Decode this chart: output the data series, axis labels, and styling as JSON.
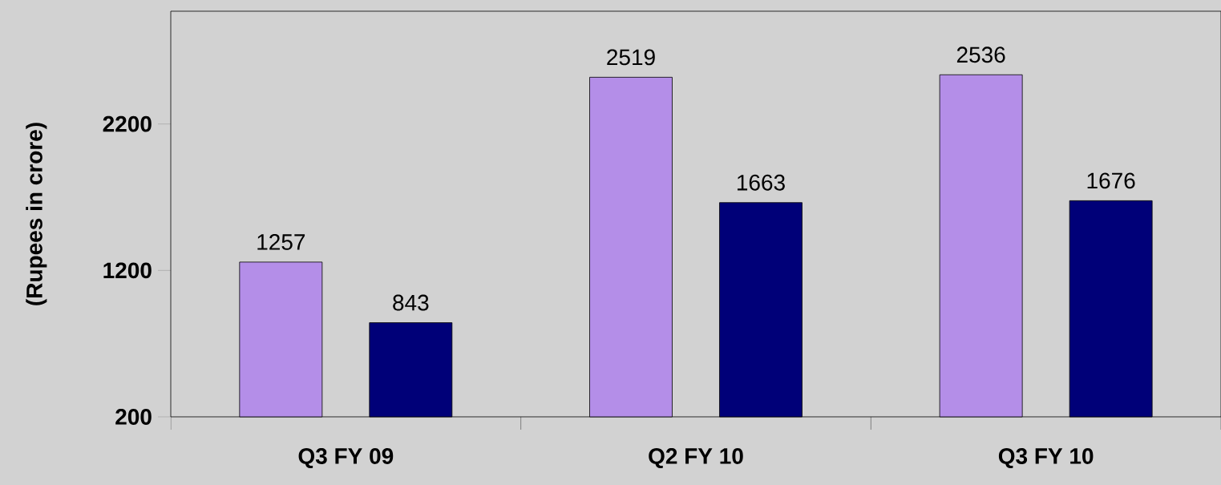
{
  "chart_data": {
    "type": "bar",
    "ylabel": "(Rupees in crore)",
    "categories": [
      "Q3  FY 09",
      "Q2 FY 10",
      "Q3 FY 10"
    ],
    "series": [
      {
        "color": "#b48ee8",
        "values": [
          1257,
          2519,
          2536
        ]
      },
      {
        "color": "#000078",
        "values": [
          843,
          1663,
          1676
        ]
      }
    ],
    "ylim": [
      200,
      2970
    ],
    "yticks": [
      200,
      1200,
      2200
    ],
    "grid": false,
    "data_labels": true
  }
}
